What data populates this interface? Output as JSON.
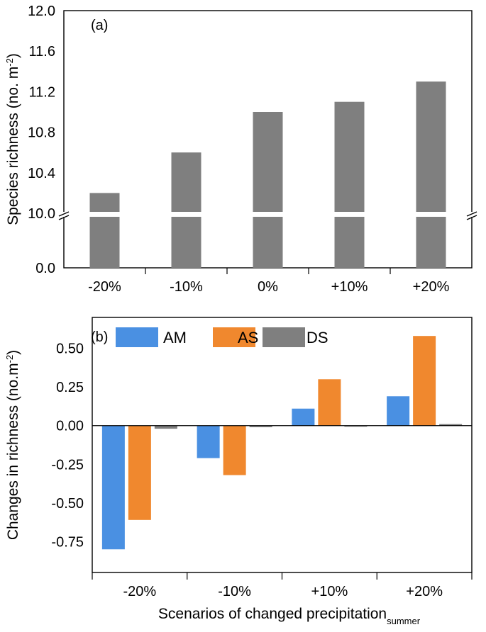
{
  "chart_data": [
    {
      "type": "bar",
      "panel_label": "(a)",
      "ylabel": "Species richness (no. m",
      "ylabel_sup": "-2",
      "ylabel_close": ")",
      "categories": [
        "-20%",
        "-10%",
        "0%",
        "+10%",
        "+20%"
      ],
      "values": [
        10.2,
        10.6,
        11.0,
        11.1,
        11.3
      ],
      "yticks": [
        "0.0",
        "10.0",
        "10.4",
        "10.8",
        "11.2",
        "11.6",
        "12.0"
      ],
      "ylim_upper": [
        10.0,
        12.0
      ],
      "broken_axis": true,
      "color": "#7f7f7f"
    },
    {
      "type": "bar",
      "panel_label": "(b)",
      "ylabel": "Changes in richness (no.m",
      "ylabel_sup": "-2",
      "ylabel_close": ")",
      "xlabel": "Scenarios of changed precipitation",
      "xlabel_sub": "summer",
      "categories": [
        "-20%",
        "-10%",
        "+10%",
        "+20%"
      ],
      "ylim": [
        -0.95,
        0.7
      ],
      "yticks": [
        "-0.75",
        "-0.50",
        "-0.25",
        "0.00",
        "0.25",
        "0.50"
      ],
      "series": [
        {
          "name": "AM",
          "color": "#4a90e2",
          "values": [
            -0.8,
            -0.21,
            0.11,
            0.19
          ]
        },
        {
          "name": "AS",
          "color": "#f0882e",
          "values": [
            -0.61,
            -0.32,
            0.3,
            0.58
          ]
        },
        {
          "name": "DS",
          "color": "#7f7f7f",
          "values": [
            -0.02,
            -0.01,
            0.0,
            0.01
          ]
        }
      ],
      "legend_position": "top-left"
    }
  ]
}
